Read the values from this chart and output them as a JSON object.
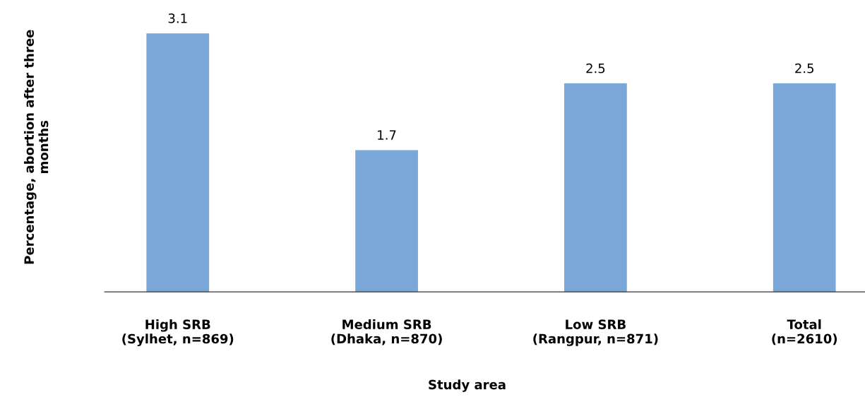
{
  "chart_data": {
    "type": "bar",
    "categories": [
      "High SRB\n(Sylhet, n=869)",
      "Medium SRB\n(Dhaka, n=870)",
      "Low SRB\n(Rangpur, n=871)",
      "Total\n(n=2610)"
    ],
    "values": [
      3.1,
      1.7,
      2.5,
      2.5
    ],
    "color": "#7ba7d8",
    "xlabel": "Study area",
    "ylabel": "Percentage, abortion after three\nmonths",
    "data_labels": true,
    "grid": false,
    "legend": false
  }
}
